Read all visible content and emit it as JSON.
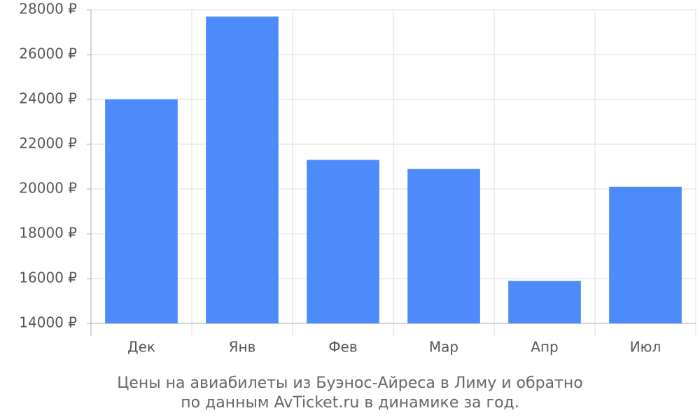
{
  "chart_data": {
    "type": "bar",
    "title_lines": [
      "Цены на авиабилеты из Буэнос-Айреса в Лиму и обратно",
      "по данным AvTicket.ru в динамике за год."
    ],
    "categories": [
      "Дек",
      "Янв",
      "Фев",
      "Мар",
      "Апр",
      "Июл"
    ],
    "values": [
      24000,
      27700,
      21300,
      20900,
      15900,
      20100
    ],
    "color": "#4e8bfa",
    "ylim": [
      14000,
      28000
    ],
    "yticks": [
      {
        "value": 14000,
        "label": "14000 ₽"
      },
      {
        "value": 16000,
        "label": "16000 ₽"
      },
      {
        "value": 18000,
        "label": "18000 ₽"
      },
      {
        "value": 20000,
        "label": "20000 ₽"
      },
      {
        "value": 22000,
        "label": "22000 ₽"
      },
      {
        "value": 24000,
        "label": "24000 ₽"
      },
      {
        "value": 26000,
        "label": "26000 ₽"
      },
      {
        "value": 28000,
        "label": "28000 ₽"
      }
    ],
    "grid": true
  }
}
